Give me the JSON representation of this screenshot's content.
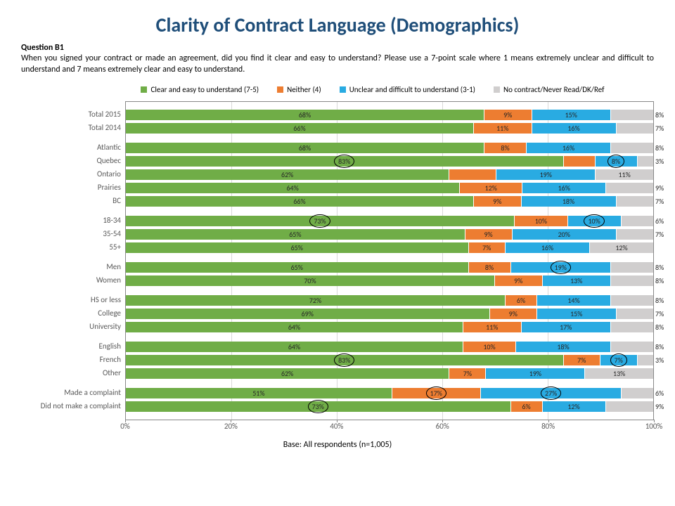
{
  "title": "Clarity of Contract Language (Demographics)",
  "question_label": "Question B1",
  "question_text": "When you signed your contract or made an agreement, did you find it clear and easy to understand? Please use a 7-point scale where 1 means extremely unclear and difficult to understand and 7 means extremely clear and easy to understand.",
  "base_note": "Base: All respondents (n=1,005)",
  "legend": [
    {
      "label": "Clear and easy to understand (7-5)",
      "color": "#70ad47"
    },
    {
      "label": "Neither (4)",
      "color": "#ed7d31"
    },
    {
      "label": "Unclear and difficult to understand (3-1)",
      "color": "#29abe2"
    },
    {
      "label": "No contract/Never Read/DK/Ref",
      "color": "#d0cece"
    }
  ],
  "colors": {
    "clear": "#70ad47",
    "neither": "#ed7d31",
    "unclear": "#29abe2",
    "dk": "#d0cece",
    "grid": "#d9d9d9",
    "axis": "#888888",
    "title": "#1f4e79"
  },
  "xaxis": {
    "ticks": [
      0,
      20,
      40,
      60,
      80,
      100
    ],
    "labels": [
      "0%",
      "20%",
      "40%",
      "60%",
      "80%",
      "100%"
    ]
  },
  "groups": [
    {
      "rows": [
        {
          "label": "Total 2015",
          "values": [
            68,
            9,
            15,
            8
          ],
          "circled": [
            false,
            false,
            false,
            false
          ]
        },
        {
          "label": "Total 2014",
          "values": [
            66,
            11,
            16,
            7
          ],
          "circled": [
            false,
            false,
            false,
            false
          ]
        }
      ]
    },
    {
      "rows": [
        {
          "label": "Atlantic",
          "values": [
            68,
            8,
            16,
            8
          ],
          "circled": [
            false,
            false,
            false,
            false
          ]
        },
        {
          "label": "Quebec",
          "values": [
            83,
            6,
            8,
            3
          ],
          "circled": [
            true,
            false,
            true,
            false
          ],
          "hide_neither_label": true
        },
        {
          "label": "Ontario",
          "values": [
            62,
            9,
            19,
            11
          ],
          "circled": [
            false,
            false,
            false,
            false
          ],
          "hide_neither_label": true
        },
        {
          "label": "Prairies",
          "values": [
            64,
            12,
            16,
            9
          ],
          "circled": [
            false,
            false,
            false,
            false
          ]
        },
        {
          "label": "BC",
          "values": [
            66,
            9,
            18,
            7
          ],
          "circled": [
            false,
            false,
            false,
            false
          ]
        }
      ]
    },
    {
      "rows": [
        {
          "label": "18-34",
          "values": [
            73,
            10,
            10,
            6
          ],
          "circled": [
            true,
            false,
            true,
            false
          ]
        },
        {
          "label": "35-54",
          "values": [
            65,
            9,
            20,
            7
          ],
          "circled": [
            false,
            false,
            false,
            false
          ]
        },
        {
          "label": "55+",
          "values": [
            65,
            7,
            16,
            12
          ],
          "circled": [
            false,
            false,
            false,
            false
          ]
        }
      ]
    },
    {
      "rows": [
        {
          "label": "Men",
          "values": [
            65,
            8,
            19,
            8
          ],
          "circled": [
            false,
            false,
            true,
            false
          ]
        },
        {
          "label": "Women",
          "values": [
            70,
            9,
            13,
            8
          ],
          "circled": [
            false,
            false,
            false,
            false
          ]
        }
      ]
    },
    {
      "rows": [
        {
          "label": "HS or less",
          "values": [
            72,
            6,
            14,
            8
          ],
          "circled": [
            false,
            false,
            false,
            false
          ]
        },
        {
          "label": "College",
          "values": [
            69,
            9,
            15,
            7
          ],
          "circled": [
            false,
            false,
            false,
            false
          ]
        },
        {
          "label": "University",
          "values": [
            64,
            11,
            17,
            8
          ],
          "circled": [
            false,
            false,
            false,
            false
          ]
        }
      ]
    },
    {
      "rows": [
        {
          "label": "English",
          "values": [
            64,
            10,
            18,
            8
          ],
          "circled": [
            false,
            false,
            false,
            false
          ]
        },
        {
          "label": "French",
          "values": [
            83,
            7,
            7,
            3
          ],
          "circled": [
            true,
            false,
            true,
            false
          ]
        },
        {
          "label": "Other",
          "values": [
            62,
            7,
            19,
            13
          ],
          "circled": [
            false,
            false,
            false,
            false
          ]
        }
      ]
    },
    {
      "rows": [
        {
          "label": "Made a complaint",
          "values": [
            51,
            17,
            27,
            6
          ],
          "circled": [
            false,
            true,
            true,
            false
          ]
        },
        {
          "label": "Did not make a complaint",
          "values": [
            73,
            6,
            12,
            9
          ],
          "circled": [
            true,
            false,
            false,
            false
          ]
        }
      ]
    }
  ]
}
